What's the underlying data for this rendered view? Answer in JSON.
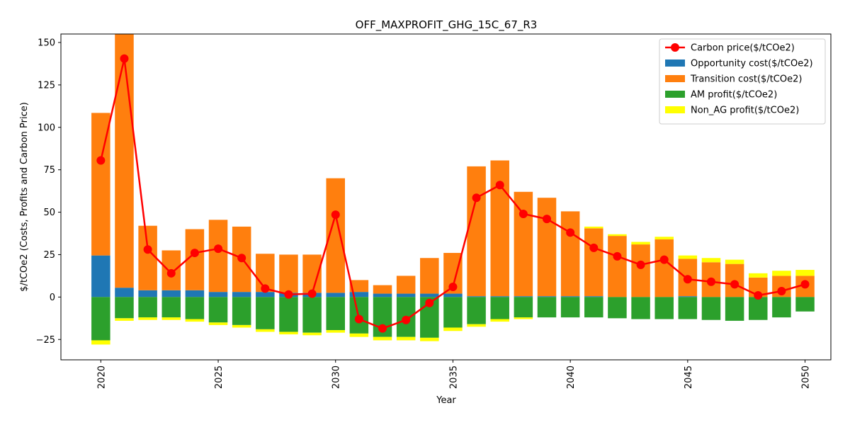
{
  "chart_data": {
    "type": "bar",
    "title": "OFF_MAXPROFIT_GHG_15C_67_R3",
    "xlabel": "Year",
    "ylabel": "$/tCOe2 (Costs, Profits and Carbon Price)",
    "xlim": [
      2018.3,
      2051.1
    ],
    "ylim": [
      -37,
      155
    ],
    "xticks": [
      2020,
      2025,
      2030,
      2035,
      2040,
      2045,
      2050
    ],
    "xtick_labels": [
      "2020",
      "2025",
      "2030",
      "2035",
      "2040",
      "2045",
      "2050"
    ],
    "yticks": [
      -25,
      0,
      25,
      50,
      75,
      100,
      125,
      150
    ],
    "ytick_labels": [
      "−25",
      "0",
      "25",
      "50",
      "75",
      "100",
      "125",
      "150"
    ],
    "legend_position": "top-right",
    "years": [
      2020,
      2021,
      2022,
      2023,
      2024,
      2025,
      2026,
      2027,
      2028,
      2029,
      2030,
      2031,
      2032,
      2033,
      2034,
      2035,
      2036,
      2037,
      2038,
      2039,
      2040,
      2041,
      2042,
      2043,
      2044,
      2045,
      2046,
      2047,
      2048,
      2049,
      2050
    ],
    "stacked_positive": [
      {
        "name": "Opportunity cost($/tCOe2)",
        "color": "#1f77b4",
        "values": [
          24.5,
          5.5,
          4,
          4,
          4,
          3,
          3,
          3,
          2.5,
          2.5,
          2.5,
          3,
          2,
          2,
          2,
          2,
          0.5,
          0.5,
          0.5,
          0.5,
          0.5,
          0.5,
          0,
          0,
          0,
          0.5,
          0,
          0,
          0,
          0,
          0
        ]
      },
      {
        "name": "Transition cost($/tCOe2)",
        "color": "#ff7f0e",
        "values": [
          84,
          150,
          38,
          23.5,
          36,
          42.5,
          38.5,
          22.5,
          22.5,
          22.5,
          67.5,
          7,
          5,
          10.5,
          21,
          24,
          76.5,
          80,
          61.5,
          58,
          50,
          40,
          36,
          31,
          34,
          22,
          20.5,
          19.5,
          11.5,
          12.5,
          12.5
        ]
      },
      {
        "name": "Non_AG profit($/tCOe2)",
        "color": "#ffff00",
        "values": [
          0,
          0,
          0,
          0,
          0,
          0,
          0,
          0,
          0,
          0,
          0,
          0,
          0,
          0,
          0,
          0,
          0,
          0,
          0,
          0,
          0,
          1,
          1,
          1.5,
          1.5,
          2,
          2.5,
          2.5,
          2.5,
          3,
          3.5
        ]
      }
    ],
    "stacked_negative": [
      {
        "name": "AM profit($/tCOe2)",
        "color": "#2ca02c",
        "values": [
          -25.5,
          -12.5,
          -12,
          -12,
          -13,
          -15,
          -16.5,
          -19,
          -20.5,
          -21,
          -19.5,
          -21.5,
          -23.5,
          -23.5,
          -24,
          -18,
          -16,
          -13,
          -12,
          -12,
          -12,
          -12,
          -12.5,
          -13,
          -13,
          -13,
          -13.5,
          -14,
          -13.5,
          -12,
          -8.5
        ]
      },
      {
        "name": "Non_AG profit($/tCOe2)",
        "color": "#ffff00",
        "values": [
          -2.5,
          -1.5,
          -1.5,
          -1.5,
          -1.5,
          -1.5,
          -1.5,
          -1.5,
          -1.5,
          -1.5,
          -1.5,
          -2,
          -2,
          -2,
          -2,
          -2,
          -1.5,
          -1.5,
          -1,
          0,
          0,
          0,
          0,
          0,
          0,
          0,
          0,
          0,
          0,
          0,
          0
        ]
      }
    ],
    "line_series": {
      "name": "Carbon price($/tCOe2)",
      "color": "#ff0000",
      "values": [
        80.5,
        140.5,
        28,
        14,
        26,
        28.5,
        23,
        5,
        1.5,
        2,
        48.5,
        -13,
        -18.5,
        -13.5,
        -3.5,
        6,
        58.5,
        66,
        49,
        46,
        38,
        29,
        24,
        19,
        22,
        10.5,
        9,
        7.5,
        1,
        3.5,
        7.5
      ]
    },
    "legend": [
      {
        "name": "Carbon price($/tCOe2)",
        "kind": "line",
        "color": "#ff0000"
      },
      {
        "name": "Opportunity cost($/tCOe2)",
        "kind": "patch",
        "color": "#1f77b4"
      },
      {
        "name": "Transition cost($/tCOe2)",
        "kind": "patch",
        "color": "#ff7f0e"
      },
      {
        "name": "AM profit($/tCOe2)",
        "kind": "patch",
        "color": "#2ca02c"
      },
      {
        "name": "Non_AG profit($/tCOe2)",
        "kind": "patch",
        "color": "#ffff00"
      }
    ]
  }
}
